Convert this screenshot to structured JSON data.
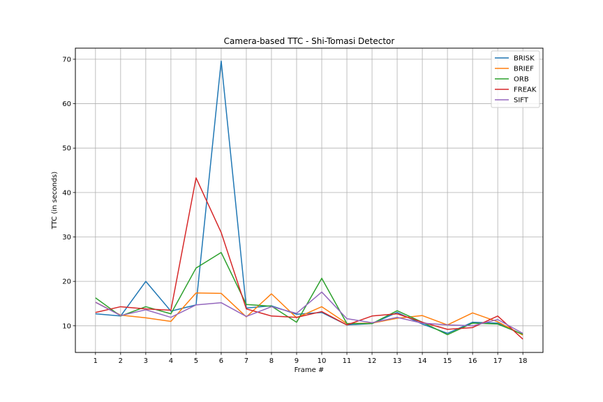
{
  "chart_data": {
    "type": "line",
    "title": "Camera-based TTC - Shi-Tomasi Detector",
    "xlabel": "Frame #",
    "ylabel": "TTC (in seconds)",
    "x": [
      1,
      2,
      3,
      4,
      5,
      6,
      7,
      8,
      9,
      10,
      11,
      12,
      13,
      14,
      15,
      16,
      17,
      18
    ],
    "xlim": [
      0.2,
      18.8
    ],
    "ylim": [
      4,
      72.5
    ],
    "yticks": [
      10,
      20,
      30,
      40,
      50,
      60,
      70
    ],
    "grid": true,
    "legend_position": "top-right",
    "series": [
      {
        "name": "BRISK",
        "color": "#1f77b4",
        "values": [
          12.7,
          12.2,
          20.0,
          13.3,
          14.7,
          69.6,
          14.0,
          14.5,
          12.6,
          13.0,
          10.2,
          10.5,
          13.0,
          10.4,
          8.3,
          10.8,
          10.6,
          8.0
        ]
      },
      {
        "name": "BRIEF",
        "color": "#ff7f0e",
        "values": [
          15.3,
          12.4,
          11.8,
          11.0,
          17.4,
          17.3,
          12.0,
          17.2,
          11.8,
          14.3,
          10.5,
          10.6,
          11.7,
          12.3,
          10.2,
          12.9,
          10.9,
          7.9
        ]
      },
      {
        "name": "ORB",
        "color": "#2ca02c",
        "values": [
          16.3,
          12.2,
          14.3,
          12.7,
          23.0,
          26.5,
          14.8,
          14.4,
          10.8,
          20.7,
          10.5,
          10.5,
          13.4,
          10.8,
          8.0,
          10.6,
          10.4,
          8.1
        ]
      },
      {
        "name": "FREAK",
        "color": "#d62728",
        "values": [
          13.0,
          14.3,
          13.8,
          13.5,
          43.3,
          31.0,
          13.8,
          12.2,
          11.9,
          13.2,
          10.2,
          12.2,
          12.7,
          10.8,
          9.2,
          9.6,
          12.2,
          7.0
        ]
      },
      {
        "name": "SIFT",
        "color": "#9467bd",
        "values": [
          15.3,
          12.3,
          13.6,
          11.9,
          14.7,
          15.2,
          12.1,
          14.3,
          12.8,
          17.6,
          11.6,
          10.7,
          11.9,
          10.6,
          10.2,
          10.0,
          11.4,
          8.3
        ]
      }
    ]
  }
}
